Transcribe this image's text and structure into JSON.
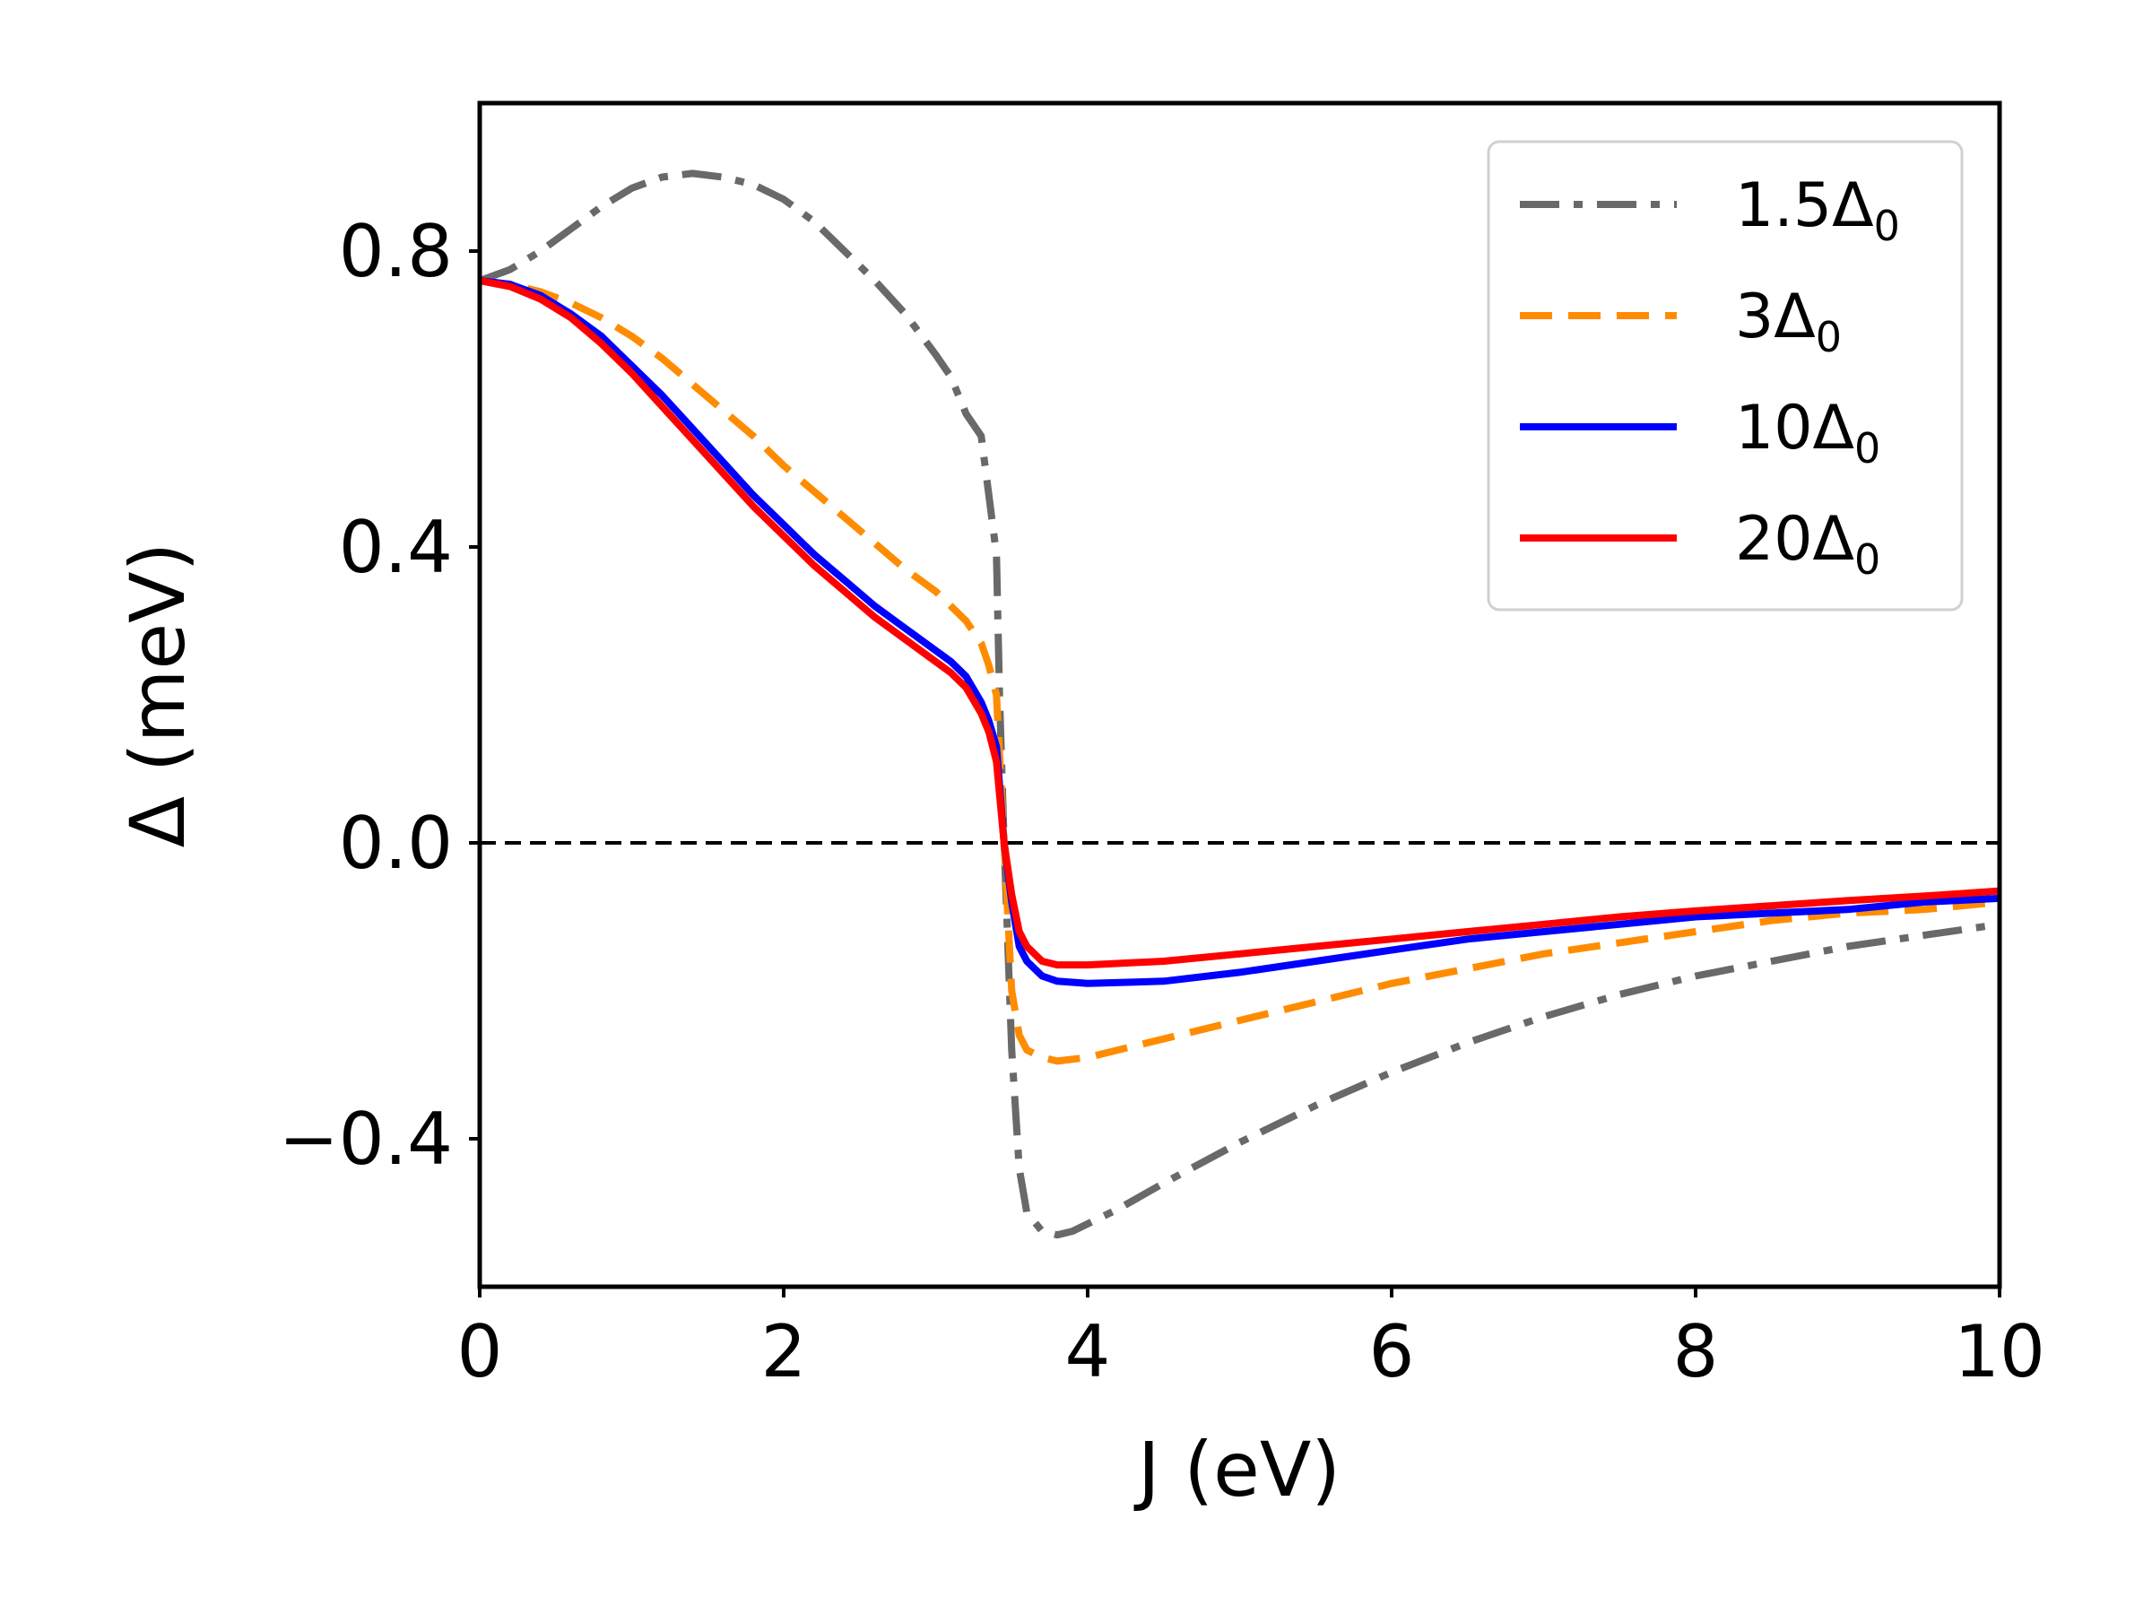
{
  "chart_data": {
    "type": "line",
    "title": "",
    "xlabel": "J (eV)",
    "ylabel": "Δ (meV)",
    "xlim": [
      0,
      10
    ],
    "ylim": [
      -0.6,
      1.0
    ],
    "xticks": [
      0,
      2,
      4,
      6,
      8,
      10
    ],
    "xtick_labels": [
      "0",
      "2",
      "4",
      "6",
      "8",
      "10"
    ],
    "yticks": [
      -0.4,
      0.0,
      0.4,
      0.8
    ],
    "ytick_labels": [
      "−0.4",
      "0.0",
      "0.4",
      "0.8"
    ],
    "grid": false,
    "legend_position": "top-right",
    "reference_line": {
      "y": 0.0,
      "style": "dashed",
      "color": "#000000"
    },
    "series": [
      {
        "name": "1.5Δ0",
        "label_main": "1.5Δ",
        "label_sub": "0",
        "color": "#696969",
        "dash": "dashdot",
        "x": [
          0,
          0.2,
          0.4,
          0.6,
          0.8,
          1.0,
          1.2,
          1.4,
          1.6,
          1.8,
          2.0,
          2.2,
          2.4,
          2.6,
          2.8,
          3.0,
          3.1,
          3.2,
          3.3,
          3.35,
          3.4,
          3.42,
          3.45,
          3.5,
          3.55,
          3.6,
          3.7,
          3.8,
          3.9,
          4.0,
          4.2,
          4.5,
          5.0,
          5.5,
          6.0,
          6.5,
          7.0,
          7.5,
          8.0,
          8.5,
          9.0,
          9.5,
          10.0
        ],
        "y": [
          0.76,
          0.775,
          0.8,
          0.83,
          0.86,
          0.885,
          0.9,
          0.905,
          0.9,
          0.89,
          0.87,
          0.84,
          0.8,
          0.76,
          0.715,
          0.66,
          0.63,
          0.58,
          0.55,
          0.47,
          0.39,
          0.2,
          0.0,
          -0.28,
          -0.44,
          -0.5,
          -0.525,
          -0.53,
          -0.525,
          -0.515,
          -0.495,
          -0.46,
          -0.405,
          -0.355,
          -0.31,
          -0.27,
          -0.235,
          -0.205,
          -0.18,
          -0.16,
          -0.14,
          -0.125,
          -0.11
        ]
      },
      {
        "name": "3Δ0",
        "label_main": "3Δ",
        "label_sub": "0",
        "color": "#ff8c00",
        "dash": "dashed",
        "x": [
          0,
          0.2,
          0.4,
          0.6,
          0.8,
          1.0,
          1.2,
          1.4,
          1.6,
          1.8,
          2.0,
          2.2,
          2.4,
          2.6,
          2.8,
          3.0,
          3.1,
          3.2,
          3.3,
          3.35,
          3.4,
          3.45,
          3.5,
          3.55,
          3.6,
          3.7,
          3.8,
          4.0,
          4.5,
          5.0,
          5.5,
          6.0,
          6.5,
          7.0,
          7.5,
          8.0,
          8.5,
          9.0,
          9.5,
          10.0
        ],
        "y": [
          0.76,
          0.755,
          0.745,
          0.73,
          0.71,
          0.685,
          0.655,
          0.62,
          0.585,
          0.55,
          0.51,
          0.475,
          0.44,
          0.405,
          0.37,
          0.34,
          0.32,
          0.3,
          0.27,
          0.24,
          0.2,
          0.0,
          -0.2,
          -0.26,
          -0.28,
          -0.29,
          -0.295,
          -0.29,
          -0.265,
          -0.24,
          -0.215,
          -0.19,
          -0.17,
          -0.15,
          -0.135,
          -0.12,
          -0.105,
          -0.095,
          -0.09,
          -0.08
        ]
      },
      {
        "name": "10Δ0",
        "label_main": "10Δ",
        "label_sub": "0",
        "color": "#0000ff",
        "dash": "solid",
        "x": [
          0,
          0.2,
          0.4,
          0.6,
          0.8,
          1.0,
          1.2,
          1.4,
          1.6,
          1.8,
          2.0,
          2.2,
          2.4,
          2.6,
          2.8,
          3.0,
          3.1,
          3.2,
          3.3,
          3.35,
          3.4,
          3.45,
          3.5,
          3.55,
          3.6,
          3.7,
          3.8,
          4.0,
          4.5,
          5.0,
          5.5,
          6.0,
          6.5,
          7.0,
          7.5,
          8.0,
          8.5,
          9.0,
          9.5,
          10.0
        ],
        "y": [
          0.76,
          0.755,
          0.74,
          0.715,
          0.685,
          0.645,
          0.605,
          0.56,
          0.515,
          0.47,
          0.43,
          0.39,
          0.355,
          0.32,
          0.29,
          0.26,
          0.245,
          0.225,
          0.19,
          0.165,
          0.13,
          0.0,
          -0.08,
          -0.14,
          -0.16,
          -0.18,
          -0.187,
          -0.19,
          -0.187,
          -0.175,
          -0.16,
          -0.145,
          -0.13,
          -0.12,
          -0.11,
          -0.1,
          -0.095,
          -0.09,
          -0.08,
          -0.075
        ]
      },
      {
        "name": "20Δ0",
        "label_main": "20Δ",
        "label_sub": "0",
        "color": "#ff0000",
        "dash": "solid",
        "x": [
          0,
          0.2,
          0.4,
          0.6,
          0.8,
          1.0,
          1.2,
          1.4,
          1.6,
          1.8,
          2.0,
          2.2,
          2.4,
          2.6,
          2.8,
          3.0,
          3.1,
          3.2,
          3.3,
          3.35,
          3.4,
          3.45,
          3.5,
          3.55,
          3.6,
          3.7,
          3.8,
          4.0,
          4.5,
          5.0,
          5.5,
          6.0,
          6.5,
          7.0,
          7.5,
          8.0,
          8.5,
          9.0,
          9.5,
          10.0
        ],
        "y": [
          0.76,
          0.752,
          0.735,
          0.71,
          0.675,
          0.635,
          0.59,
          0.545,
          0.5,
          0.455,
          0.415,
          0.375,
          0.34,
          0.305,
          0.275,
          0.245,
          0.23,
          0.21,
          0.175,
          0.15,
          0.11,
          0.0,
          -0.07,
          -0.12,
          -0.14,
          -0.16,
          -0.165,
          -0.165,
          -0.16,
          -0.15,
          -0.14,
          -0.13,
          -0.12,
          -0.11,
          -0.1,
          -0.092,
          -0.085,
          -0.078,
          -0.072,
          -0.065
        ]
      }
    ]
  }
}
